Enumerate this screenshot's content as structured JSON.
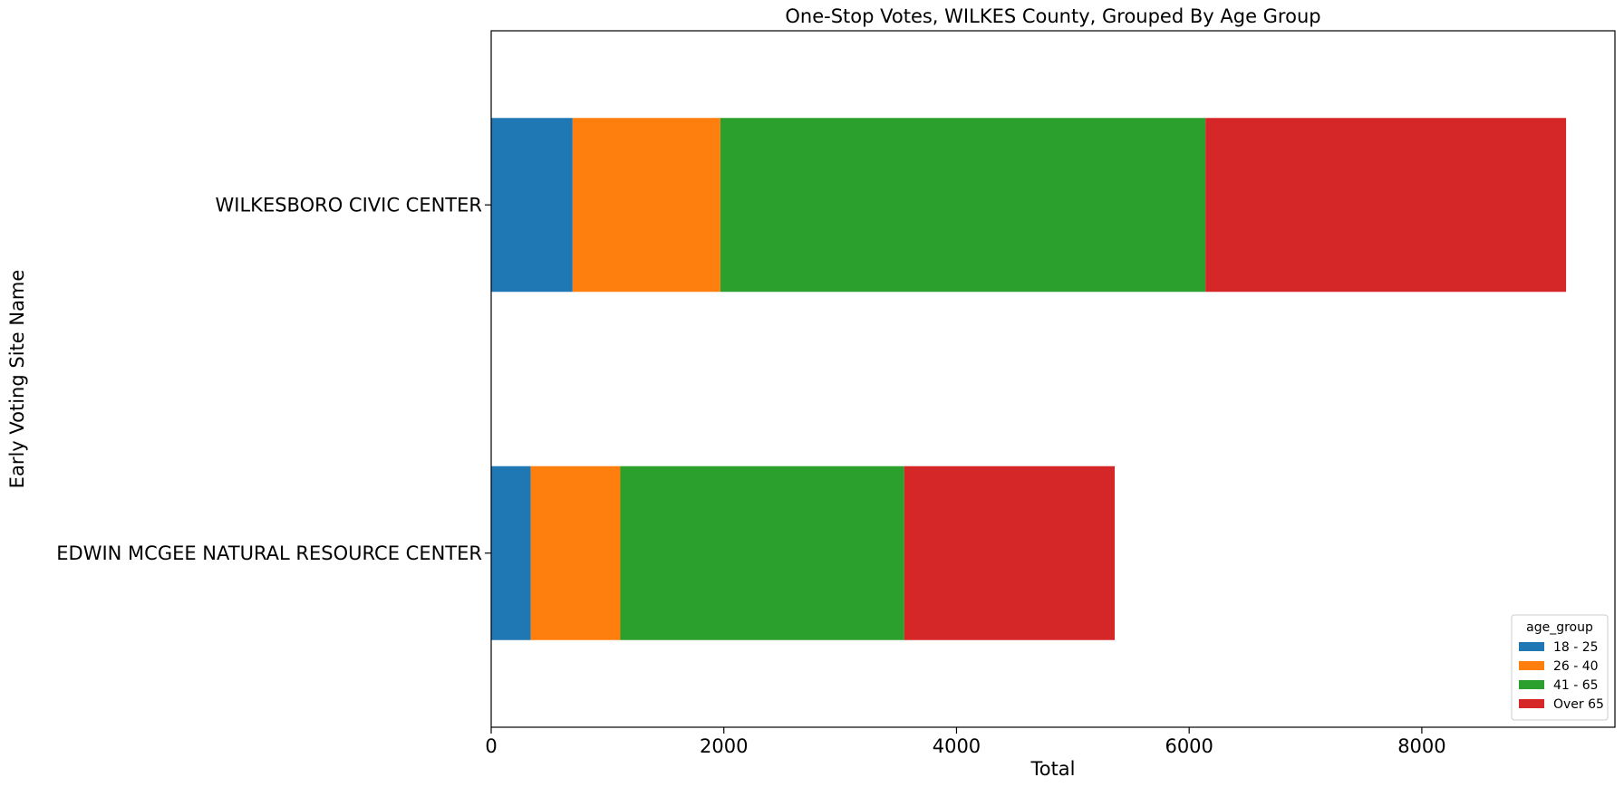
{
  "chart_data": {
    "type": "bar",
    "orientation": "horizontal",
    "stacked": true,
    "title": "One-Stop Votes, WILKES County, Grouped By Age Group",
    "xlabel": "Total",
    "ylabel": "Early Voting Site Name",
    "categories": [
      "EDWIN MCGEE NATURAL RESOURCE CENTER",
      "WILKESBORO CIVIC CENTER"
    ],
    "series": [
      {
        "name": "18 - 25",
        "color": "#1f77b4",
        "values": [
          340,
          700
        ]
      },
      {
        "name": "26 - 40",
        "color": "#ff7f0e",
        "values": [
          770,
          1270
        ]
      },
      {
        "name": "41 - 65",
        "color": "#2ca02c",
        "values": [
          2440,
          4170
        ]
      },
      {
        "name": "Over 65",
        "color": "#d62728",
        "values": [
          1810,
          3100
        ]
      }
    ],
    "xlim": [
      0,
      9660
    ],
    "xticks": [
      0,
      2000,
      4000,
      6000,
      8000
    ],
    "xtick_labels": [
      "0",
      "2000",
      "4000",
      "6000",
      "8000"
    ],
    "legend": {
      "title": "age_group",
      "placement": "lower right"
    },
    "grid": false
  }
}
